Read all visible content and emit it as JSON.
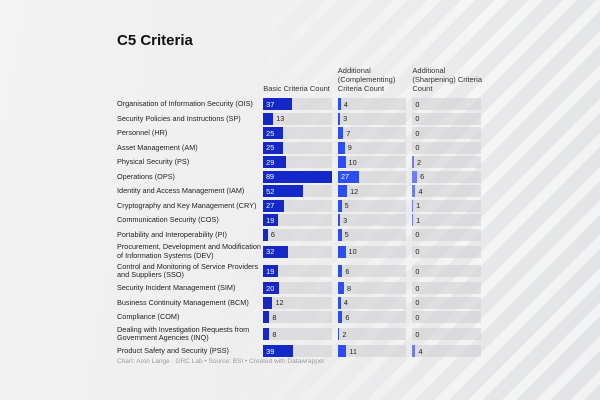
{
  "chart_data": {
    "type": "table",
    "title": "C5 Criteria",
    "columns": [
      "Basic Criteria Count",
      "Additional (Complementing) Criteria Count",
      "Additional (Sharpening) Criteria Count"
    ],
    "colors": [
      "#1428c8",
      "#2c4ef0",
      "#6c7ef2"
    ],
    "scale_max": 89,
    "rows": [
      {
        "label": "Organisation of Information Security (OIS)",
        "values": [
          37,
          4,
          0
        ]
      },
      {
        "label": "Security Policies and Instructions (SP)",
        "values": [
          13,
          3,
          0
        ]
      },
      {
        "label": "Personnel (HR)",
        "values": [
          25,
          7,
          0
        ]
      },
      {
        "label": "Asset Management (AM)",
        "values": [
          25,
          9,
          0
        ]
      },
      {
        "label": "Physical Security (PS)",
        "values": [
          29,
          10,
          2
        ]
      },
      {
        "label": "Operations (OPS)",
        "values": [
          89,
          27,
          6
        ]
      },
      {
        "label": "Identity and Access Management (IAM)",
        "values": [
          52,
          12,
          4
        ]
      },
      {
        "label": "Cryptography and Key Management (CRY)",
        "values": [
          27,
          5,
          1
        ]
      },
      {
        "label": "Communication Security (COS)",
        "values": [
          19,
          3,
          1
        ]
      },
      {
        "label": "Portability and Interoperability (PI)",
        "values": [
          6,
          5,
          0
        ]
      },
      {
        "label": "Procurement, Development and Modification of Information Systems (DEV)",
        "values": [
          32,
          10,
          0
        ],
        "tall": true
      },
      {
        "label": "Control and Monitoring of Service Providers and Suppliers (SSO)",
        "values": [
          19,
          6,
          0
        ],
        "tall": true
      },
      {
        "label": "Security Incident Management (SIM)",
        "values": [
          20,
          8,
          0
        ]
      },
      {
        "label": "Business Continuity Management (BCM)",
        "values": [
          12,
          4,
          0
        ]
      },
      {
        "label": "Compliance (COM)",
        "values": [
          8,
          6,
          0
        ]
      },
      {
        "label": "Dealing with Investigation Requests from Government Agencies (INQ)",
        "values": [
          8,
          2,
          0
        ],
        "tall": true
      },
      {
        "label": "Product Safety and Security (PSS)",
        "values": [
          39,
          11,
          4
        ]
      }
    ]
  },
  "footer": "Chart: Aron Lange · GRC Lab • Source: BSI • Created with Datawrapper"
}
